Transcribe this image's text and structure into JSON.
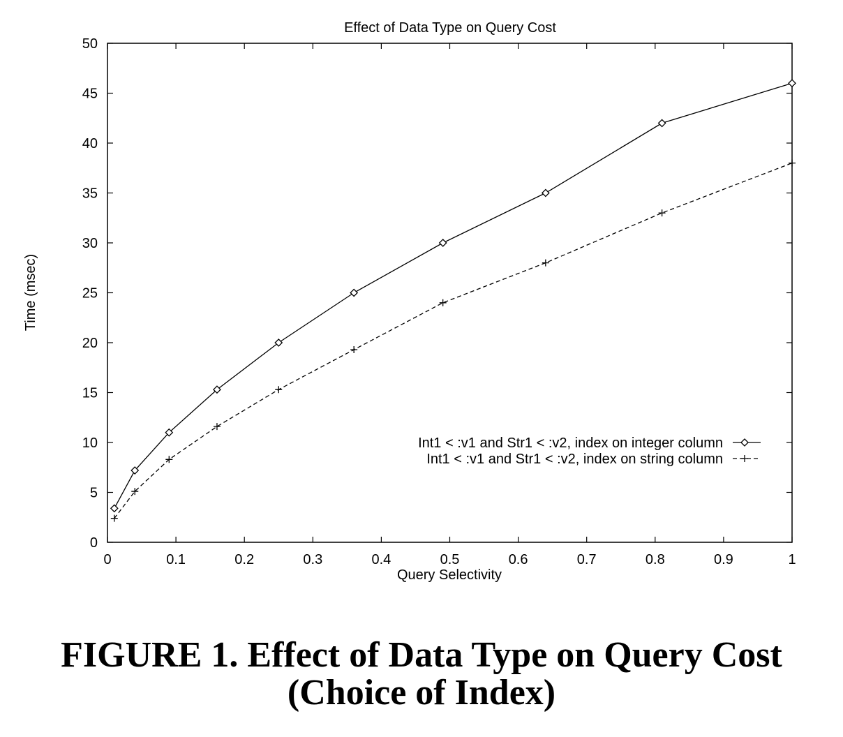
{
  "chart_data": {
    "type": "line",
    "title": "Effect of Data Type on Query Cost",
    "xlabel": "Query Selectivity",
    "ylabel": "Time (msec)",
    "xlim": [
      0,
      1
    ],
    "ylim": [
      0,
      50
    ],
    "x_ticks": [
      0,
      0.1,
      0.2,
      0.3,
      0.4,
      0.5,
      0.6,
      0.7,
      0.8,
      0.9,
      1
    ],
    "x_tick_labels": [
      "0",
      "0.1",
      "0.2",
      "0.3",
      "0.4",
      "0.5",
      "0.6",
      "0.7",
      "0.8",
      "0.9",
      "1"
    ],
    "y_ticks": [
      0,
      5,
      10,
      15,
      20,
      25,
      30,
      35,
      40,
      45,
      50
    ],
    "y_tick_labels": [
      "0",
      "5",
      "10",
      "15",
      "20",
      "25",
      "30",
      "35",
      "40",
      "45",
      "50"
    ],
    "grid": false,
    "legend_position": "right",
    "series": [
      {
        "name": "Int1 < :v1 and Str1 < :v2, index on integer column",
        "line_style": "solid",
        "marker": "diamond",
        "x": [
          0.01,
          0.04,
          0.09,
          0.16,
          0.25,
          0.36,
          0.49,
          0.64,
          0.81,
          1.0
        ],
        "y": [
          3.4,
          7.2,
          11.0,
          15.3,
          20.0,
          25.0,
          30.0,
          35.0,
          42.0,
          46.0
        ]
      },
      {
        "name": "Int1 < :v1 and Str1 < :v2, index on  string column",
        "line_style": "dashed",
        "marker": "plus",
        "x": [
          0.01,
          0.04,
          0.09,
          0.16,
          0.25,
          0.36,
          0.49,
          0.64,
          0.81,
          1.0
        ],
        "y": [
          2.4,
          5.1,
          8.3,
          11.6,
          15.3,
          19.3,
          24.0,
          28.0,
          33.0,
          38.0
        ]
      }
    ]
  },
  "caption": {
    "line1": "FIGURE 1. Effect of Data Type on Query Cost",
    "line2": "(Choice of Index)"
  }
}
